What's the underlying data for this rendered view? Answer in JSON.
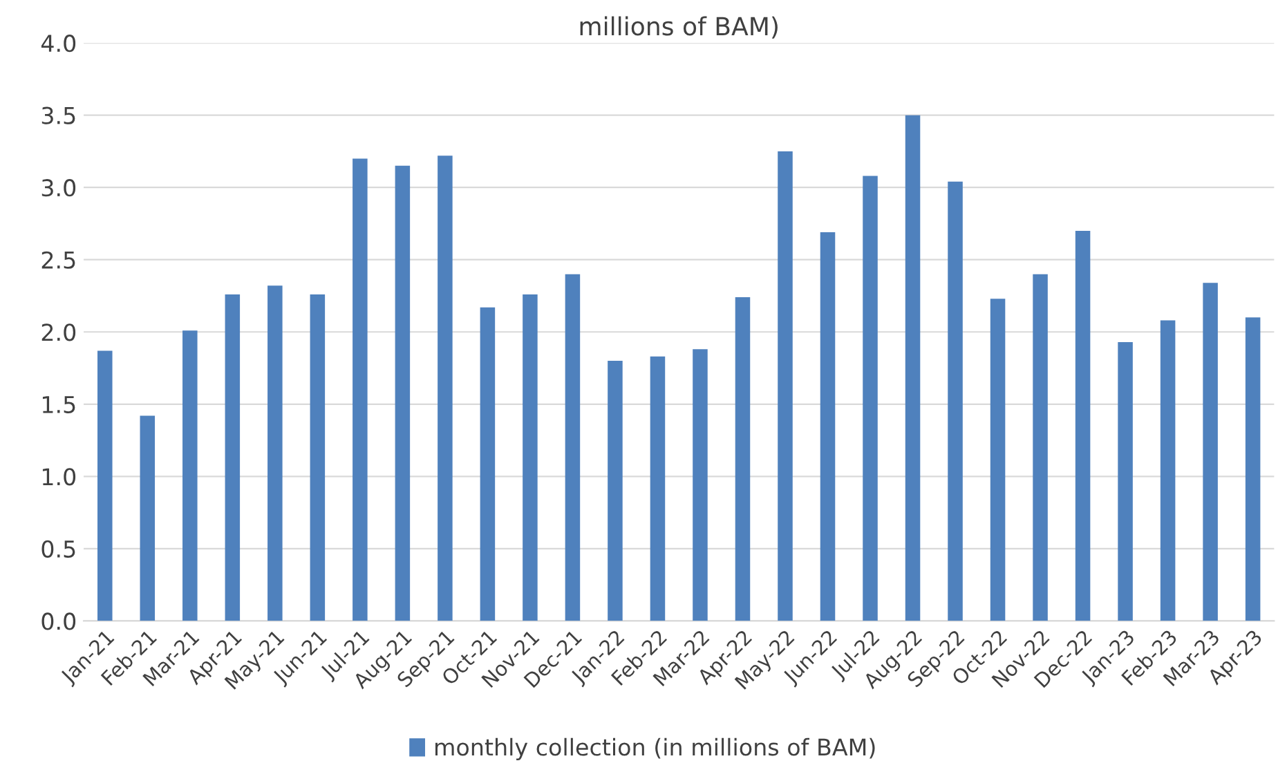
{
  "chart_data": {
    "type": "bar",
    "title": "millions of BAM)",
    "categories": [
      "Jan-21",
      "Feb-21",
      "Mar-21",
      "Apr-21",
      "May-21",
      "Jun-21",
      "Jul-21",
      "Aug-21",
      "Sep-21",
      "Oct-21",
      "Nov-21",
      "Dec-21",
      "Jan-22",
      "Feb-22",
      "Mar-22",
      "Apr-22",
      "May-22",
      "Jun-22",
      "Jul-22",
      "Aug-22",
      "Sep-22",
      "Oct-22",
      "Nov-22",
      "Dec-22",
      "Jan-23",
      "Feb-23",
      "Mar-23",
      "Apr-23"
    ],
    "series": [
      {
        "name": "monthly collection (in millions of BAM)",
        "color": "#4f81bd",
        "values": [
          1.87,
          1.42,
          2.01,
          2.26,
          2.32,
          2.26,
          3.2,
          3.15,
          3.22,
          2.17,
          2.26,
          2.4,
          1.8,
          1.83,
          1.88,
          2.24,
          3.25,
          2.69,
          3.08,
          3.5,
          3.04,
          2.23,
          2.4,
          2.7,
          1.93,
          2.08,
          2.34,
          2.1
        ]
      }
    ],
    "ylim": [
      0,
      4
    ],
    "yticks": [
      {
        "value": 0,
        "label": "0.0"
      },
      {
        "value": 0.5,
        "label": "0.5"
      },
      {
        "value": 1,
        "label": "1.0"
      },
      {
        "value": 1.5,
        "label": "1.5"
      },
      {
        "value": 2,
        "label": "2.0"
      },
      {
        "value": 2.5,
        "label": "2.5"
      },
      {
        "value": 3,
        "label": "3.0"
      },
      {
        "value": 3.5,
        "label": "3.5"
      },
      {
        "value": 4,
        "label": "4.0"
      }
    ],
    "grid": "y",
    "legend": "bottom"
  }
}
